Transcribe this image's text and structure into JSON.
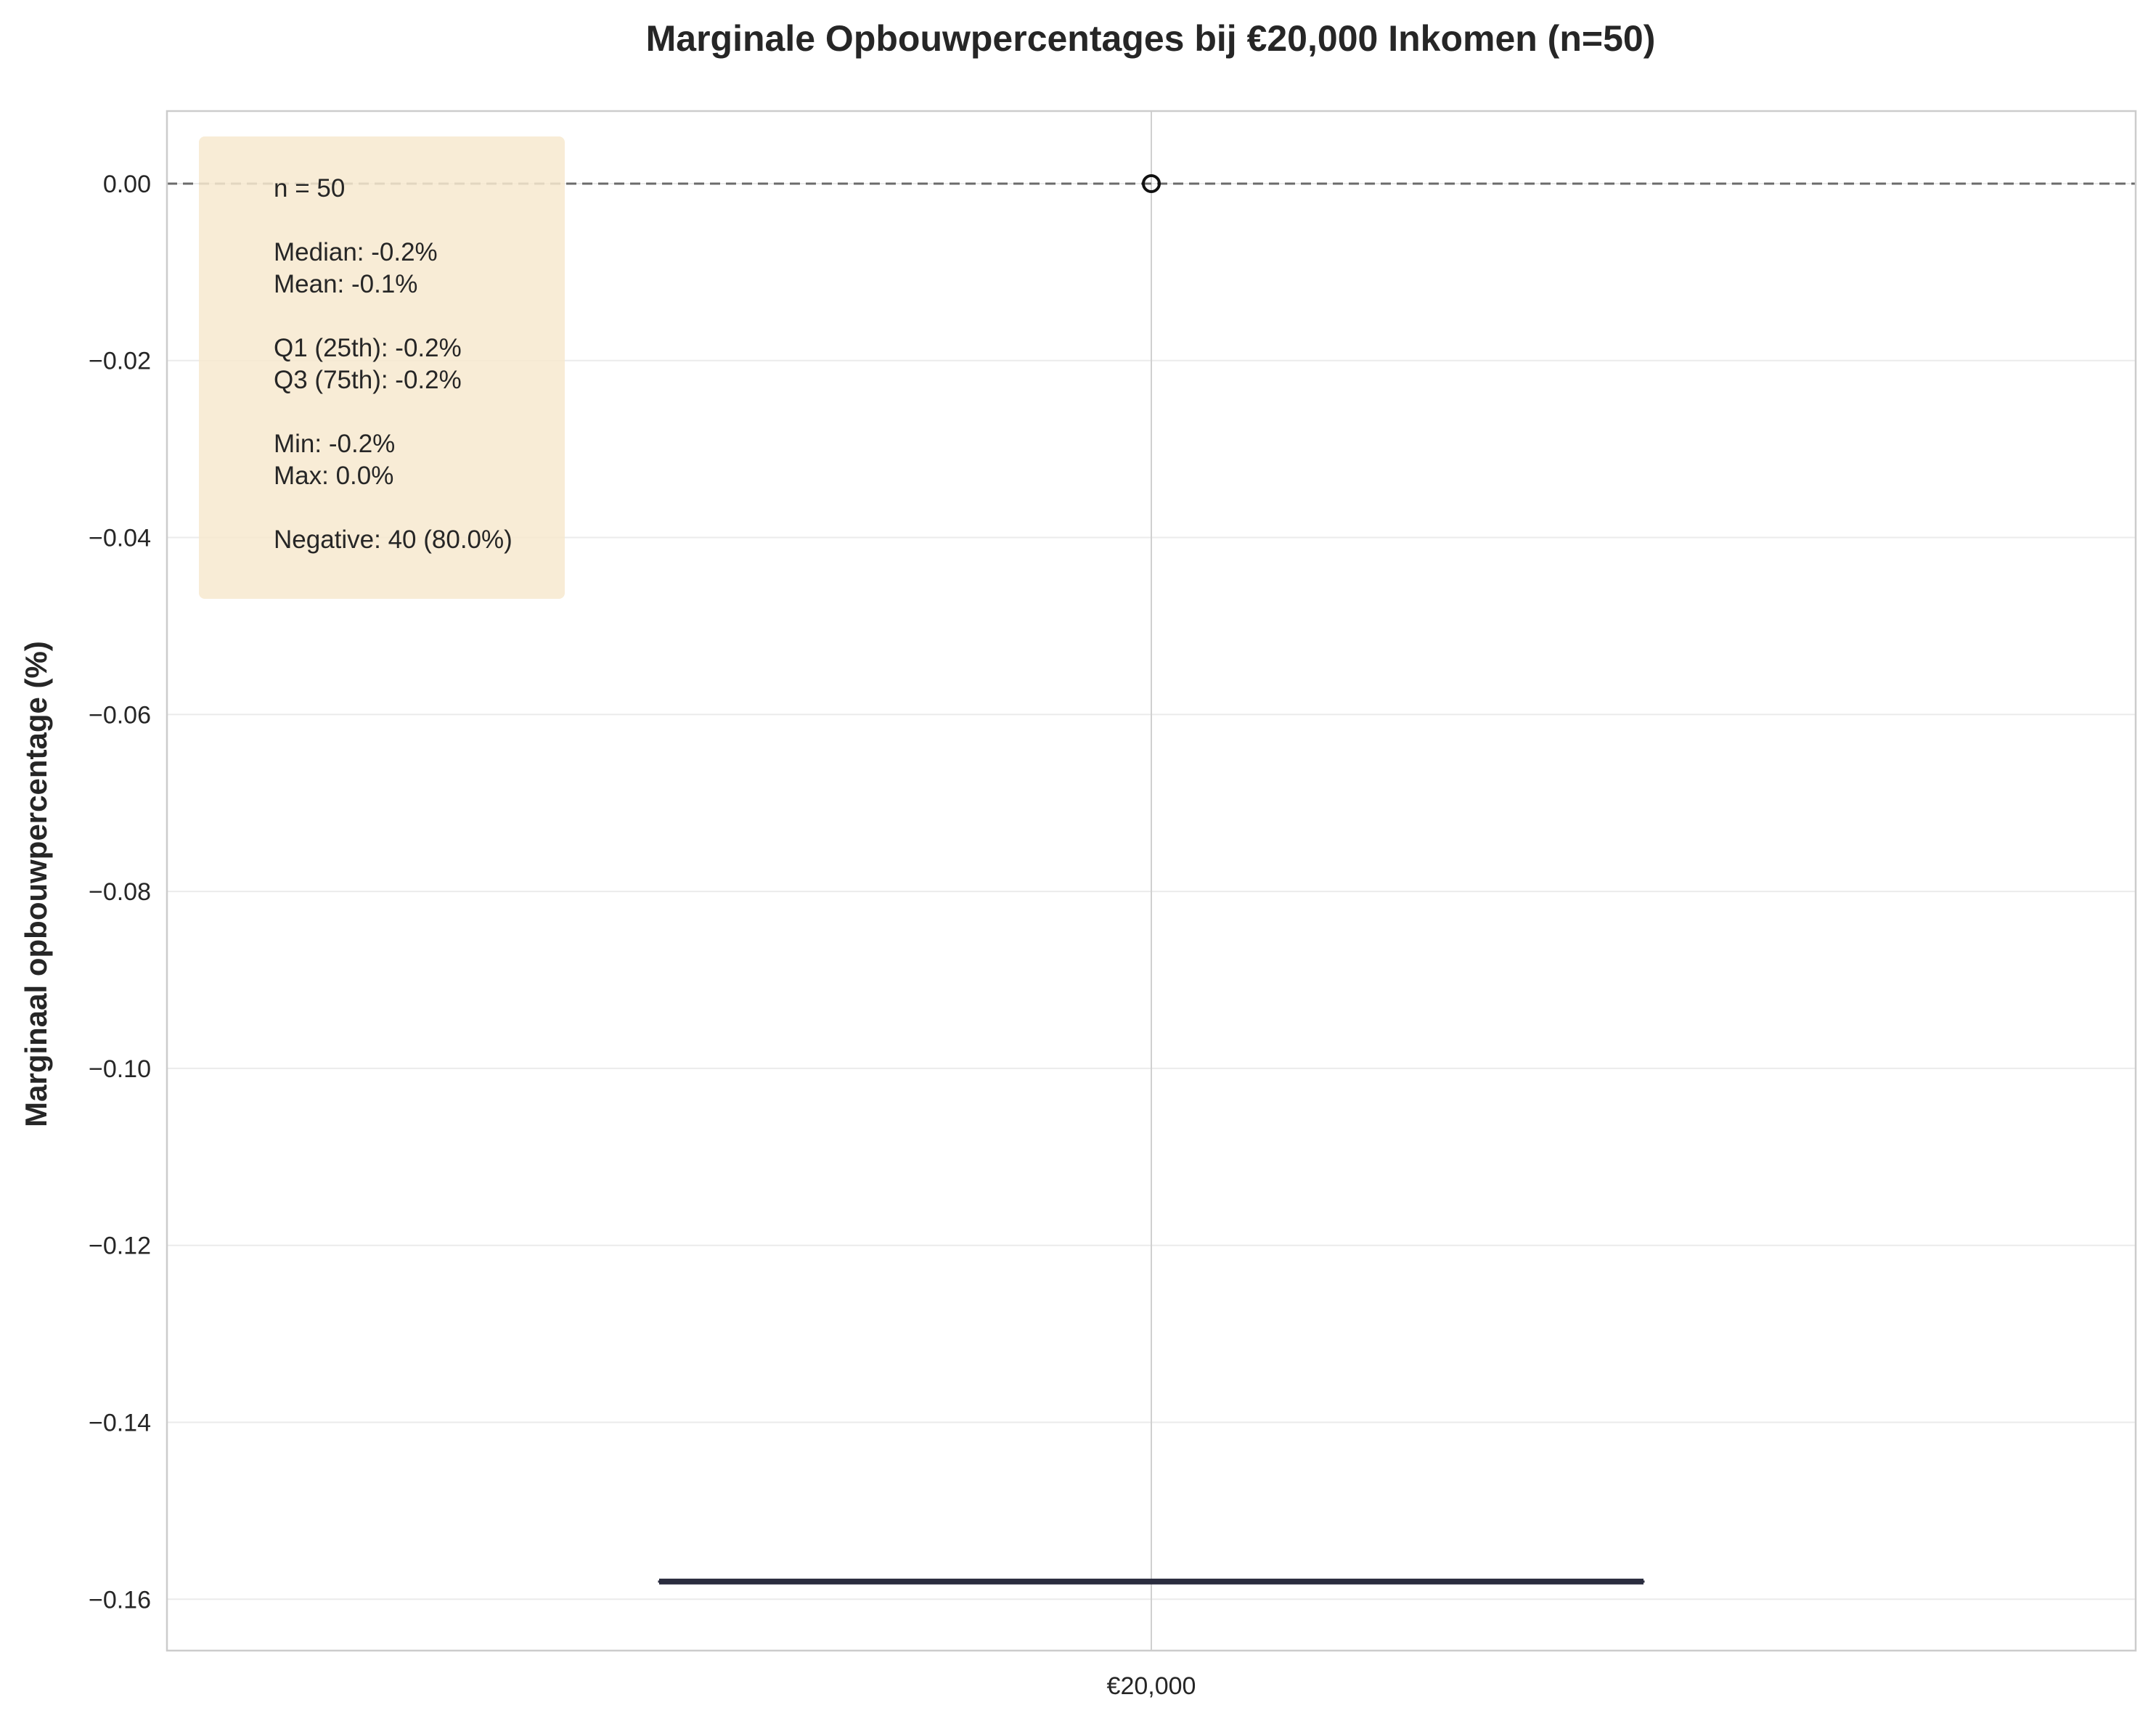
{
  "chart_data": {
    "type": "box",
    "title": "Marginale Opbouwpercentages bij €20,000 Inkomen (n=50)",
    "xlabel": "",
    "ylabel": "Marginaal opbouwpercentage (%)",
    "categories": [
      "€20,000"
    ],
    "ylim": [
      -0.1658,
      0.0082
    ],
    "yticks": [
      0.0,
      -0.02,
      -0.04,
      -0.06,
      -0.08,
      -0.1,
      -0.12,
      -0.14,
      -0.16
    ],
    "ytick_labels": [
      "0.00",
      "−0.02",
      "−0.04",
      "−0.06",
      "−0.08",
      "−0.10",
      "−0.12",
      "−0.14",
      "−0.16"
    ],
    "grid": true,
    "reference_line": {
      "y": 0.0,
      "style": "dashed",
      "color": "#6b6b6b"
    },
    "box": {
      "category": "€20,000",
      "q1": -0.158,
      "median": -0.158,
      "q3": -0.158,
      "whisker_low": -0.158,
      "whisker_high": -0.158,
      "outliers": [
        0.0
      ],
      "color": "#2b2d3f"
    },
    "stats_box": {
      "background": "#f7e9cf",
      "lines": [
        "n = 50",
        "",
        "Median: -0.2%",
        "Mean: -0.1%",
        "",
        "Q1 (25th): -0.2%",
        "Q3 (75th): -0.2%",
        "",
        "Min: -0.2%",
        "Max: 0.0%",
        "",
        "Negative: 40 (80.0%)"
      ]
    }
  }
}
